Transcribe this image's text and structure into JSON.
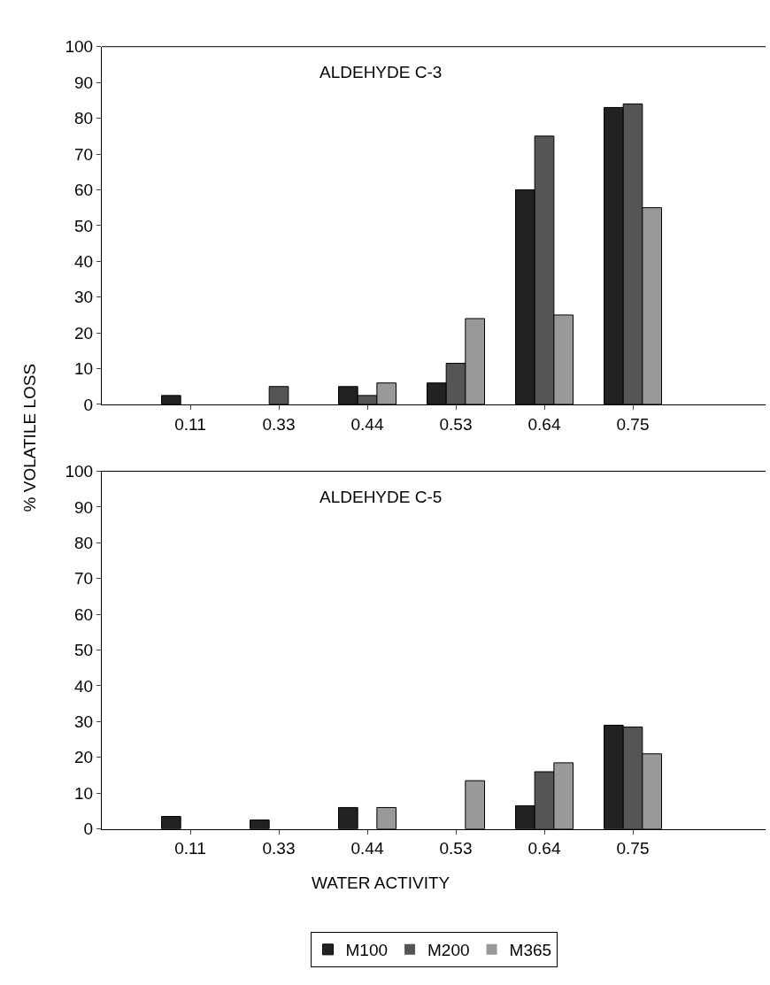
{
  "chart_data": [
    {
      "type": "bar",
      "title": "ALDEHYDE C-3",
      "ylabel": "% VOLATILE LOSS",
      "categories": [
        "0.11",
        "0.33",
        "0.44",
        "0.53",
        "0.64",
        "0.75"
      ],
      "ylim": [
        0,
        100
      ],
      "yticks": [
        0,
        10,
        20,
        30,
        40,
        50,
        60,
        70,
        80,
        90,
        100
      ],
      "series": [
        {
          "color": "#222222",
          "values": [
            2.5,
            0,
            5,
            6,
            60,
            83
          ]
        },
        {
          "color": "#555555",
          "values": [
            0,
            5,
            2.5,
            11.5,
            75,
            84
          ]
        },
        {
          "color": "#999999",
          "values": [
            0,
            0,
            6,
            24,
            25,
            55
          ]
        }
      ]
    },
    {
      "type": "bar",
      "title": "ALDEHYDE C-5",
      "xlabel": "WATER ACTIVITY",
      "categories": [
        "0.11",
        "0.33",
        "0.44",
        "0.53",
        "0.64",
        "0.75"
      ],
      "ylim": [
        0,
        100
      ],
      "yticks": [
        0,
        10,
        20,
        30,
        40,
        50,
        60,
        70,
        80,
        90,
        100
      ],
      "legend": "bottom",
      "series": [
        {
          "name": "M100",
          "color": "#222222",
          "values": [
            3.5,
            2.5,
            6,
            0,
            6.5,
            29
          ]
        },
        {
          "name": "M200",
          "color": "#555555",
          "values": [
            0,
            0,
            0,
            0,
            16,
            28.5
          ]
        },
        {
          "name": "M365",
          "color": "#999999",
          "values": [
            0,
            0,
            6,
            13.5,
            18.5,
            21
          ]
        }
      ]
    }
  ]
}
